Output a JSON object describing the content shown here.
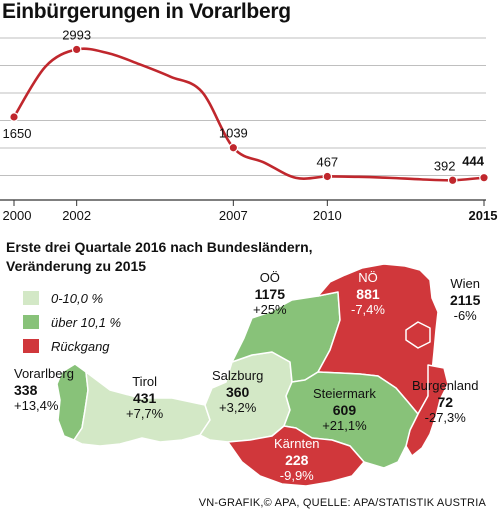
{
  "title": "Einbürgerungen in Vorarlberg",
  "chart_data": {
    "type": "line",
    "x": [
      2000,
      2001,
      2002,
      2003,
      2004,
      2005,
      2006,
      2007,
      2008,
      2009,
      2010,
      2011,
      2012,
      2013,
      2014,
      2015
    ],
    "values": [
      1650,
      2650,
      2993,
      2920,
      2700,
      2450,
      2150,
      1039,
      740,
      440,
      467,
      460,
      440,
      410,
      392,
      444
    ],
    "labeled_points": [
      {
        "x": 2000,
        "label": "1650"
      },
      {
        "x": 2002,
        "label": "2993"
      },
      {
        "x": 2007,
        "label": "1039"
      },
      {
        "x": 2010,
        "label": "467"
      },
      {
        "x": 2014,
        "label": "392"
      },
      {
        "x": 2015,
        "label": "444"
      }
    ],
    "x_ticks": [
      "2000",
      "2002",
      "2007",
      "2010",
      "2015"
    ],
    "ylim": [
      0,
      3300
    ],
    "grid": true,
    "line_color": "#c0272d"
  },
  "map": {
    "subtitle_line1": "Erste drei Quartale 2016 nach Bundesländern,",
    "subtitle_line2": "Veränderung zu 2015",
    "legend": [
      {
        "label": "0-10,0 %",
        "color": "#d3e8c6"
      },
      {
        "label": "über 10,1 %",
        "color": "#88c279"
      },
      {
        "label": "Rückgang",
        "color": "#d0373b"
      }
    ],
    "regions": [
      {
        "name": "Vorarlberg",
        "count": "338",
        "change": "+13,4%",
        "category": 1
      },
      {
        "name": "Tirol",
        "count": "431",
        "change": "+7,7%",
        "category": 0
      },
      {
        "name": "Salzburg",
        "count": "360",
        "change": "+3,2%",
        "category": 0
      },
      {
        "name": "OÖ",
        "count": "1175",
        "change": "+25%",
        "category": 1
      },
      {
        "name": "NÖ",
        "count": "881",
        "change": "-7,4%",
        "category": 2
      },
      {
        "name": "Wien",
        "count": "2115",
        "change": "-6%",
        "category": 2
      },
      {
        "name": "Burgenland",
        "count": "72",
        "change": "-27,3%",
        "category": 2
      },
      {
        "name": "Steiermark",
        "count": "609",
        "change": "+21,1%",
        "category": 1
      },
      {
        "name": "Kärnten",
        "count": "228",
        "change": "-9,9%",
        "category": 2
      }
    ]
  },
  "footer": "VN-GRAFIK,© APA, QUELLE: APA/STATISTIK AUSTRIA"
}
